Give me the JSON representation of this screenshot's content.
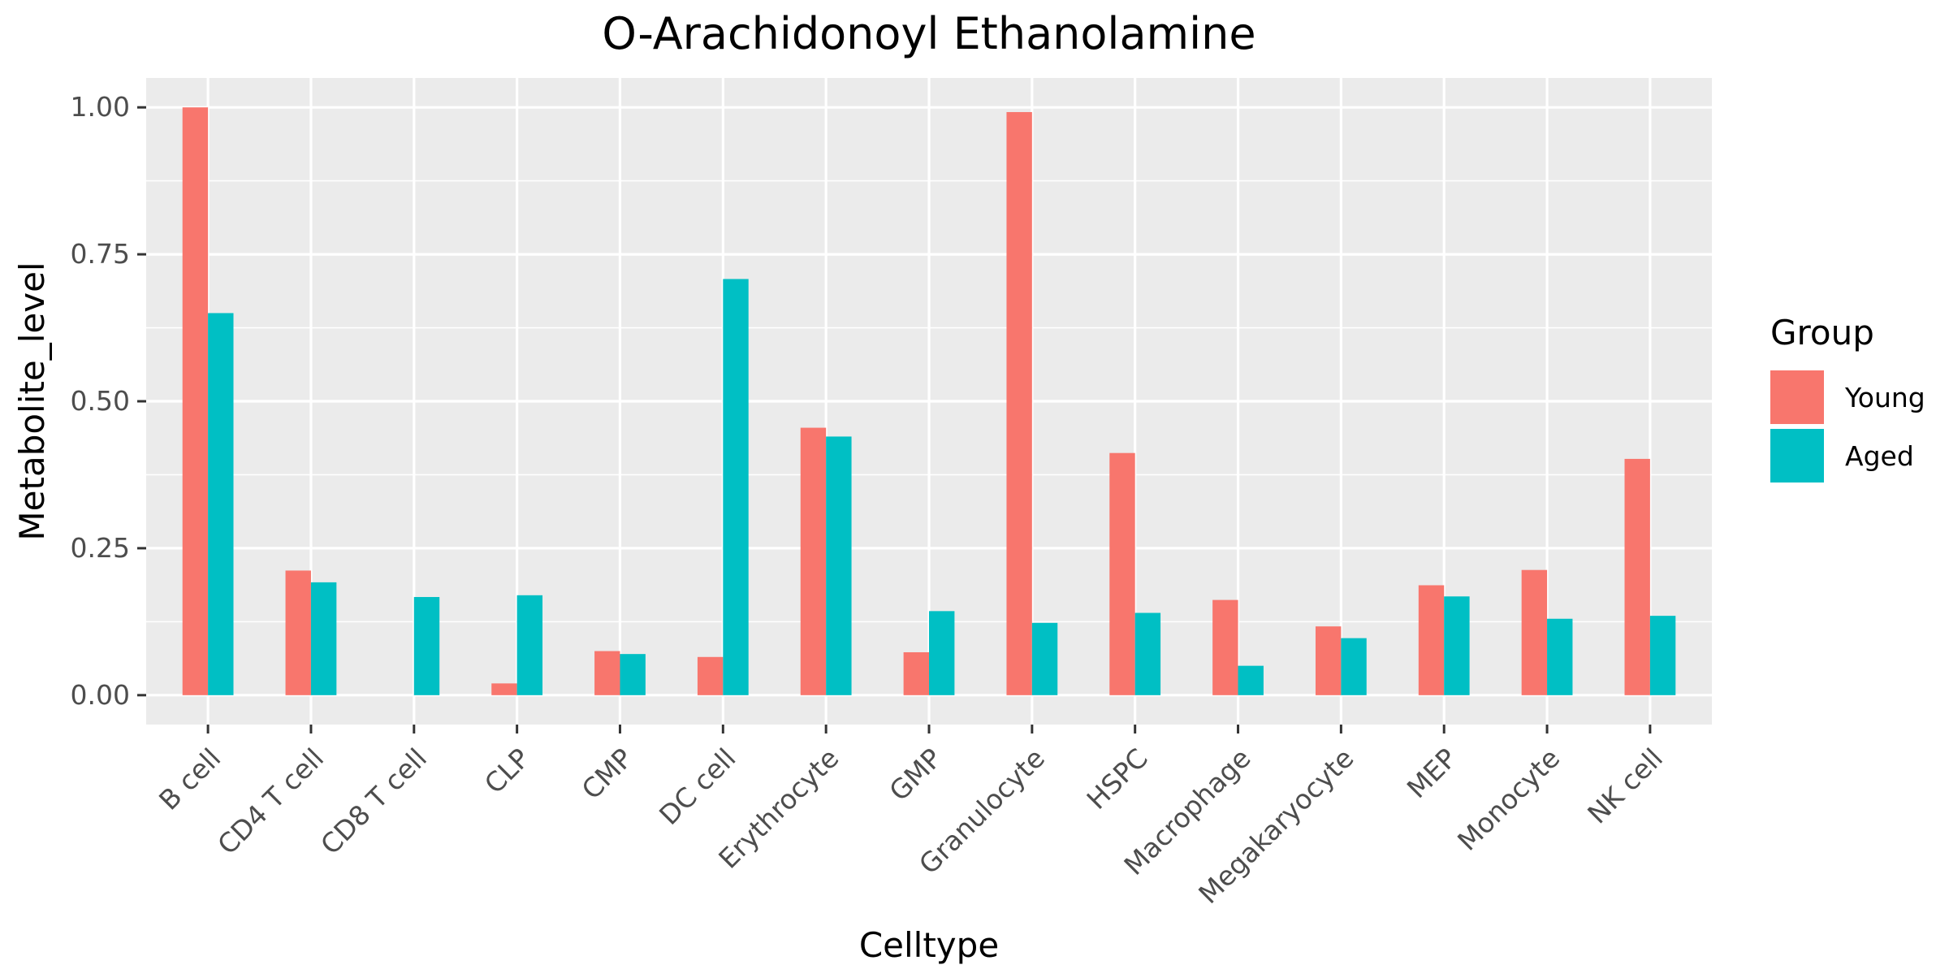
{
  "chart_data": {
    "type": "bar",
    "title": "O-Arachidonoyl Ethanolamine",
    "xlabel": "Celltype",
    "ylabel": "Metabolite_level",
    "categories": [
      "B cell",
      "CD4 T cell",
      "CD8 T cell",
      "CLP",
      "CMP",
      "DC cell",
      "Erythrocyte",
      "GMP",
      "Granulocyte",
      "HSPC",
      "Macrophage",
      "Megakaryocyte",
      "MEP",
      "Monocyte",
      "NK cell"
    ],
    "series": [
      {
        "name": "Young",
        "color": "#F8766D",
        "values": [
          1.0,
          0.212,
          0.0,
          0.02,
          0.075,
          0.065,
          0.455,
          0.073,
          0.992,
          0.412,
          0.162,
          0.117,
          0.187,
          0.213,
          0.402
        ]
      },
      {
        "name": "Aged",
        "color": "#00BFC4",
        "values": [
          0.65,
          0.192,
          0.167,
          0.17,
          0.07,
          0.708,
          0.44,
          0.143,
          0.123,
          0.14,
          0.05,
          0.097,
          0.168,
          0.13,
          0.135
        ]
      }
    ],
    "ylim": [
      -0.05,
      1.05
    ],
    "yticks": [
      0.0,
      0.25,
      0.5,
      0.75,
      1.0
    ],
    "ytick_labels": [
      "0.00",
      "0.25",
      "0.50",
      "0.75",
      "1.00"
    ],
    "grid": true,
    "panel_color": "#EBEBEB",
    "grid_color": "#FFFFFF",
    "legend": {
      "title": "Group",
      "position": "right"
    }
  }
}
